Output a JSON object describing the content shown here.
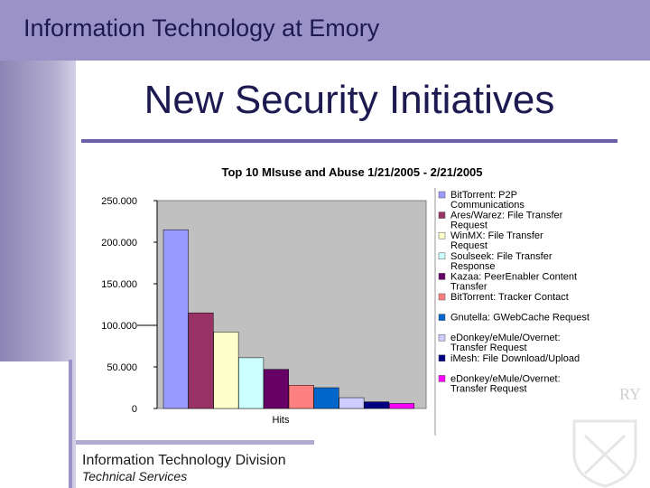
{
  "header": {
    "title": "Information Technology at Emory"
  },
  "slide": {
    "title": "New Security Initiatives"
  },
  "footer": {
    "line1": "Information Technology Division",
    "line2": "Technical Services"
  },
  "emblem": {
    "fragment": "RY"
  },
  "chart_data": {
    "type": "bar",
    "title": "Top 10 MIsuse and Abuse 1/21/2005 - 2/21/2005",
    "xlabel": "Hits",
    "ylabel": "",
    "ylim": [
      0,
      250000
    ],
    "yticks": [
      0,
      50000,
      100000,
      150000,
      200000,
      250000
    ],
    "ytick_labels": [
      "0",
      "50.000",
      "100.000",
      "150.000",
      "200.000",
      "250.000"
    ],
    "grid": false,
    "legend_position": "right",
    "series": [
      {
        "name": "BitTorrent: P2P Communications",
        "value": 215000,
        "color": "#9b9bff"
      },
      {
        "name": "Ares/Warez: File Transfer Request",
        "value": 115000,
        "color": "#993366"
      },
      {
        "name": "WinMX: File Transfer Request",
        "value": 92000,
        "color": "#ffffcc"
      },
      {
        "name": "Soulseek: File Transfer Response",
        "value": 61000,
        "color": "#ccffff"
      },
      {
        "name": "Kazaa: PeerEnabler Content Transfer",
        "value": 47000,
        "color": "#660066"
      },
      {
        "name": "BitTorrent: Tracker Contact",
        "value": 28000,
        "color": "#ff8080"
      },
      {
        "name": "Gnutella: GWebCache Request",
        "value": 25000,
        "color": "#0066cc"
      },
      {
        "name": "eDonkey/eMule/Overnet: Transfer Request",
        "value": 13000,
        "color": "#ccccff"
      },
      {
        "name": "iMesh: File Download/Upload",
        "value": 8000,
        "color": "#000080"
      },
      {
        "name": "eDonkey/eMule/Overnet: Transfer Request",
        "value": 6000,
        "color": "#ff00ff"
      }
    ]
  }
}
